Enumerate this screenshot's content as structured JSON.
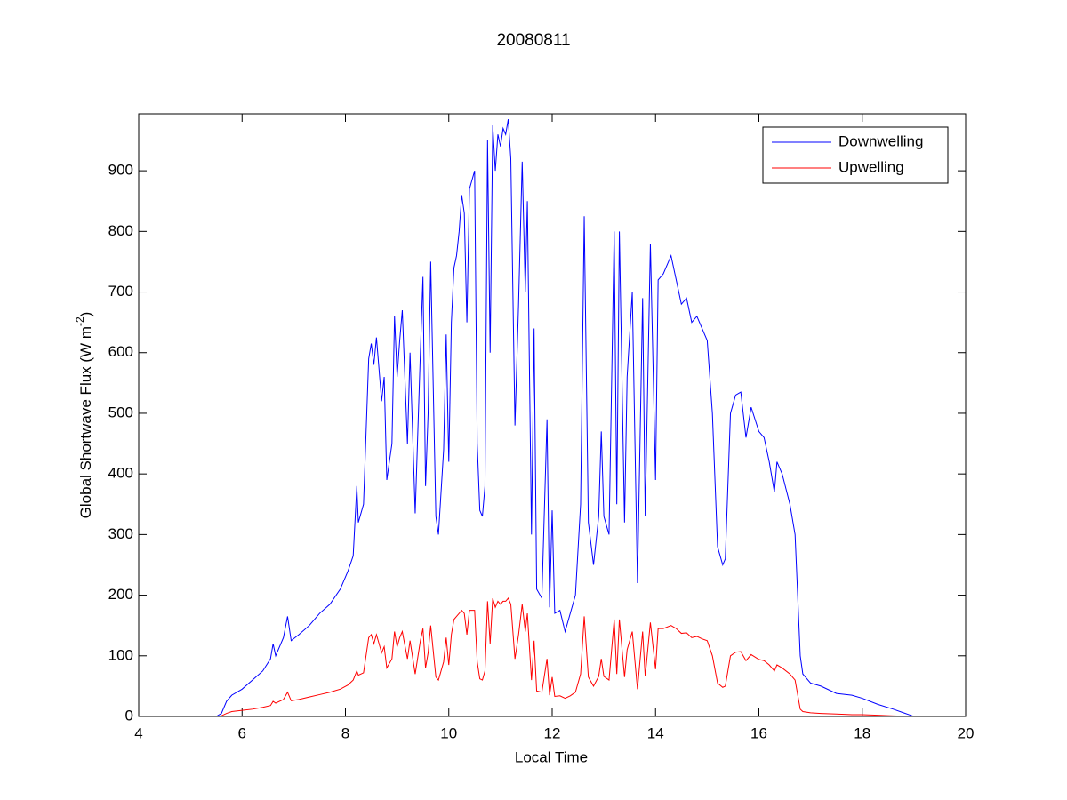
{
  "chart_data": {
    "type": "line",
    "title": "20080811",
    "xlabel": "Local Time",
    "ylabel": {
      "text": "Global Shortwave Flux (W m",
      "superscript": "-2",
      "suffix": ")"
    },
    "x": [
      5.5,
      5.6,
      5.7,
      5.8,
      6.0,
      6.2,
      6.4,
      6.55,
      6.6,
      6.65,
      6.8,
      6.88,
      6.95,
      7.1,
      7.3,
      7.5,
      7.7,
      7.9,
      8.05,
      8.15,
      8.22,
      8.25,
      8.35,
      8.45,
      8.5,
      8.55,
      8.6,
      8.7,
      8.75,
      8.8,
      8.9,
      8.95,
      9.0,
      9.05,
      9.1,
      9.2,
      9.25,
      9.35,
      9.45,
      9.5,
      9.55,
      9.6,
      9.65,
      9.75,
      9.8,
      9.9,
      9.95,
      10.0,
      10.05,
      10.1,
      10.15,
      10.2,
      10.25,
      10.3,
      10.35,
      10.4,
      10.5,
      10.55,
      10.6,
      10.65,
      10.7,
      10.75,
      10.8,
      10.85,
      10.9,
      10.95,
      11.0,
      11.05,
      11.1,
      11.15,
      11.2,
      11.28,
      11.35,
      11.42,
      11.48,
      11.52,
      11.6,
      11.65,
      11.7,
      11.8,
      11.9,
      11.95,
      12.0,
      12.05,
      12.15,
      12.25,
      12.35,
      12.45,
      12.55,
      12.62,
      12.7,
      12.8,
      12.9,
      12.95,
      13.0,
      13.1,
      13.15,
      13.2,
      13.25,
      13.3,
      13.4,
      13.45,
      13.55,
      13.65,
      13.75,
      13.8,
      13.9,
      14.0,
      14.05,
      14.15,
      14.3,
      14.4,
      14.5,
      14.6,
      14.7,
      14.8,
      14.9,
      15.0,
      15.1,
      15.2,
      15.3,
      15.35,
      15.45,
      15.55,
      15.65,
      15.75,
      15.85,
      16.0,
      16.1,
      16.2,
      16.3,
      16.35,
      16.45,
      16.6,
      16.7,
      16.8,
      16.85,
      17.0,
      17.2,
      17.5,
      17.8,
      18.0,
      18.3,
      18.6,
      18.9,
      19.0,
      19.5,
      20
    ],
    "series": [
      {
        "name": "Downwelling",
        "color": "#0000ff",
        "values": [
          0,
          5,
          25,
          35,
          45,
          60,
          75,
          95,
          120,
          100,
          130,
          165,
          125,
          135,
          150,
          170,
          185,
          210,
          240,
          265,
          380,
          320,
          350,
          590,
          615,
          580,
          625,
          520,
          560,
          390,
          450,
          660,
          560,
          620,
          670,
          450,
          600,
          335,
          600,
          725,
          380,
          500,
          750,
          330,
          300,
          440,
          630,
          420,
          650,
          740,
          760,
          800,
          860,
          830,
          650,
          870,
          900,
          450,
          340,
          330,
          380,
          950,
          600,
          975,
          900,
          960,
          940,
          970,
          960,
          985,
          920,
          480,
          680,
          915,
          700,
          850,
          300,
          640,
          210,
          195,
          490,
          180,
          340,
          170,
          175,
          140,
          170,
          200,
          350,
          825,
          320,
          250,
          330,
          470,
          330,
          300,
          550,
          800,
          350,
          800,
          320,
          560,
          700,
          220,
          690,
          330,
          780,
          390,
          720,
          730,
          760,
          720,
          680,
          690,
          650,
          660,
          640,
          620,
          500,
          280,
          250,
          260,
          500,
          530,
          535,
          460,
          510,
          470,
          460,
          420,
          370,
          420,
          400,
          350,
          300,
          100,
          70,
          55,
          50,
          38,
          35,
          30,
          20,
          12,
          3,
          0,
          0,
          0
        ]
      },
      {
        "name": "Upwelling",
        "color": "#ff0000",
        "values": [
          0,
          1,
          5,
          8,
          10,
          12,
          15,
          18,
          25,
          22,
          28,
          40,
          26,
          28,
          32,
          36,
          40,
          45,
          52,
          60,
          75,
          68,
          72,
          130,
          135,
          120,
          135,
          105,
          115,
          80,
          95,
          140,
          115,
          130,
          140,
          95,
          125,
          70,
          125,
          145,
          80,
          105,
          150,
          65,
          60,
          90,
          130,
          85,
          135,
          160,
          165,
          170,
          175,
          170,
          135,
          175,
          175,
          90,
          62,
          60,
          75,
          190,
          120,
          195,
          180,
          190,
          185,
          190,
          190,
          195,
          185,
          95,
          135,
          185,
          140,
          170,
          60,
          125,
          42,
          40,
          95,
          35,
          65,
          33,
          34,
          30,
          34,
          40,
          70,
          165,
          65,
          50,
          66,
          95,
          66,
          60,
          110,
          160,
          70,
          160,
          65,
          110,
          140,
          45,
          140,
          66,
          155,
          78,
          145,
          145,
          150,
          145,
          137,
          138,
          130,
          132,
          128,
          125,
          100,
          55,
          48,
          50,
          100,
          106,
          107,
          92,
          102,
          94,
          92,
          85,
          75,
          85,
          80,
          70,
          60,
          12,
          8,
          6,
          5,
          4,
          3,
          3,
          2,
          1,
          0,
          0,
          0,
          0
        ]
      }
    ],
    "xlim": [
      4,
      20
    ],
    "xticks": [
      4,
      6,
      8,
      10,
      12,
      14,
      16,
      18,
      20
    ],
    "ylim": [
      0,
      994
    ],
    "yticks": [
      0,
      100,
      200,
      300,
      400,
      500,
      600,
      700,
      800,
      900
    ],
    "grid": false,
    "legend": "top-right"
  }
}
